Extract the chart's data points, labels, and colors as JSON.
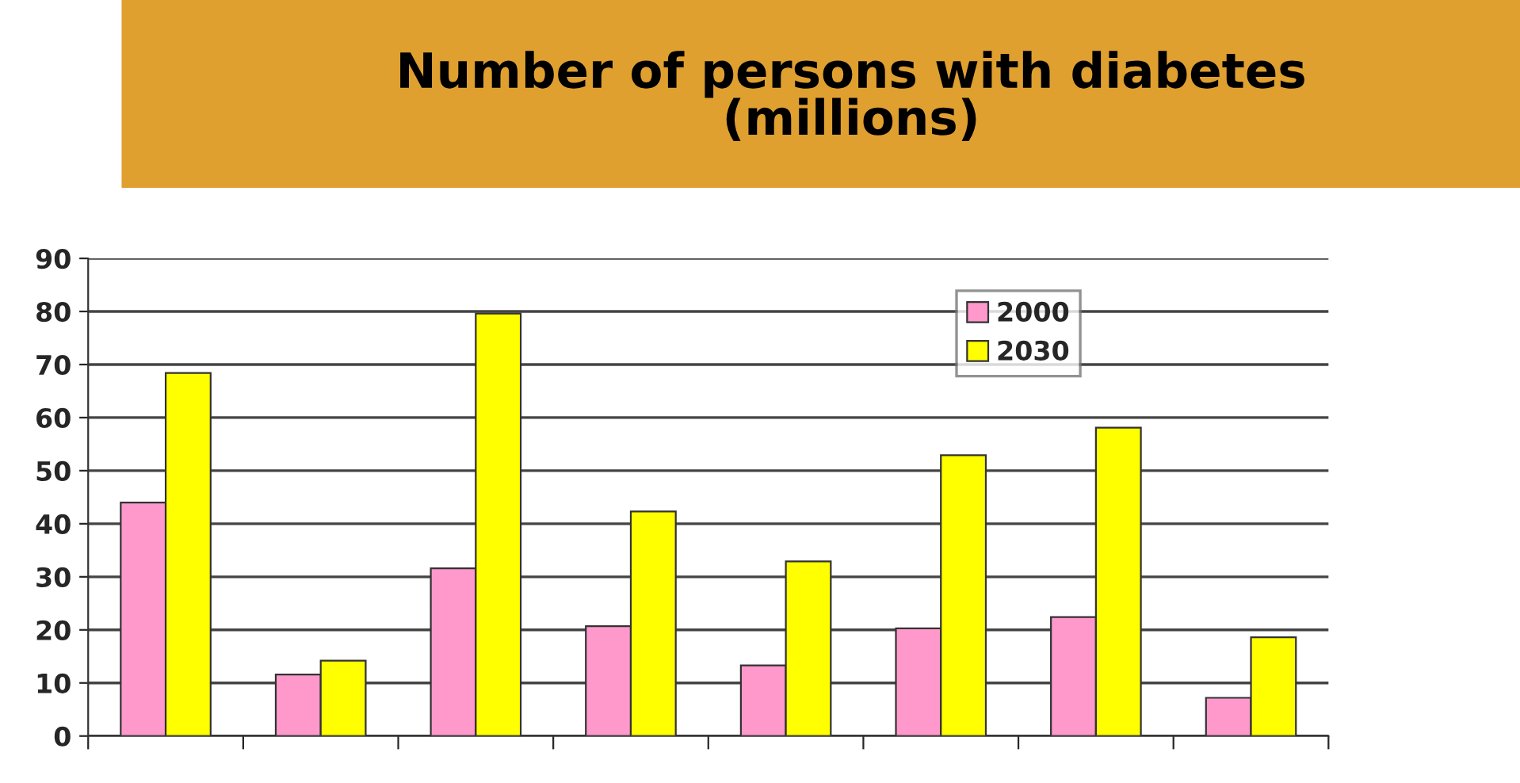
{
  "chart_data": {
    "type": "bar",
    "title": "Number of persons with diabetes\n(millions)",
    "categories": [
      null,
      null,
      null,
      null,
      null,
      null,
      null,
      null
    ],
    "series": [
      {
        "name": "2000",
        "color": "#ff99cc",
        "values": [
          44,
          11.6,
          31.6,
          20.7,
          13.3,
          20.3,
          22.4,
          7.2
        ]
      },
      {
        "name": "2030",
        "color": "#ffff00",
        "values": [
          68.4,
          14.2,
          79.6,
          42.3,
          32.9,
          52.9,
          58.1,
          18.6
        ]
      }
    ],
    "ylim": [
      0,
      90
    ],
    "yticks": [
      0,
      10,
      20,
      30,
      40,
      50,
      60,
      70,
      80,
      90
    ],
    "grid": "y",
    "legend": "top"
  }
}
